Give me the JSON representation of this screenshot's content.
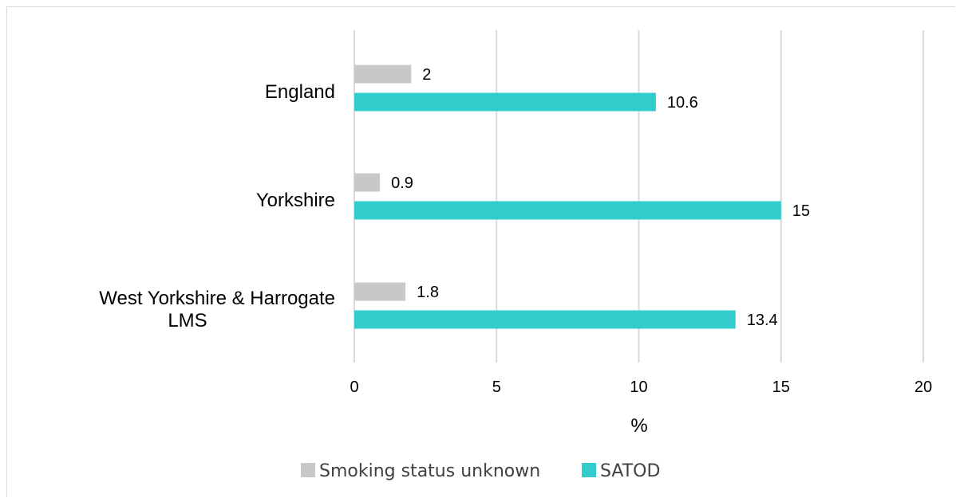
{
  "chart_data": {
    "type": "bar",
    "orientation": "horizontal",
    "categories": [
      "England",
      "Yorkshire",
      "West Yorkshire & Harrogate LMS"
    ],
    "category_label_lines": [
      [
        "England"
      ],
      [
        "Yorkshire"
      ],
      [
        "West Yorkshire & Harrogate",
        "LMS"
      ]
    ],
    "series": [
      {
        "name": "Smoking status unknown",
        "values": [
          2,
          0.9,
          1.8
        ],
        "color": "#c8c8c8"
      },
      {
        "name": "SATOD",
        "values": [
          10.6,
          15,
          13.4
        ],
        "color": "#33cccc"
      }
    ],
    "xlabel": "%",
    "xlim": [
      0,
      20
    ],
    "xticks": [
      "0",
      "5",
      "10",
      "15",
      "20"
    ],
    "grid": "vertical",
    "legend": "bottom"
  }
}
